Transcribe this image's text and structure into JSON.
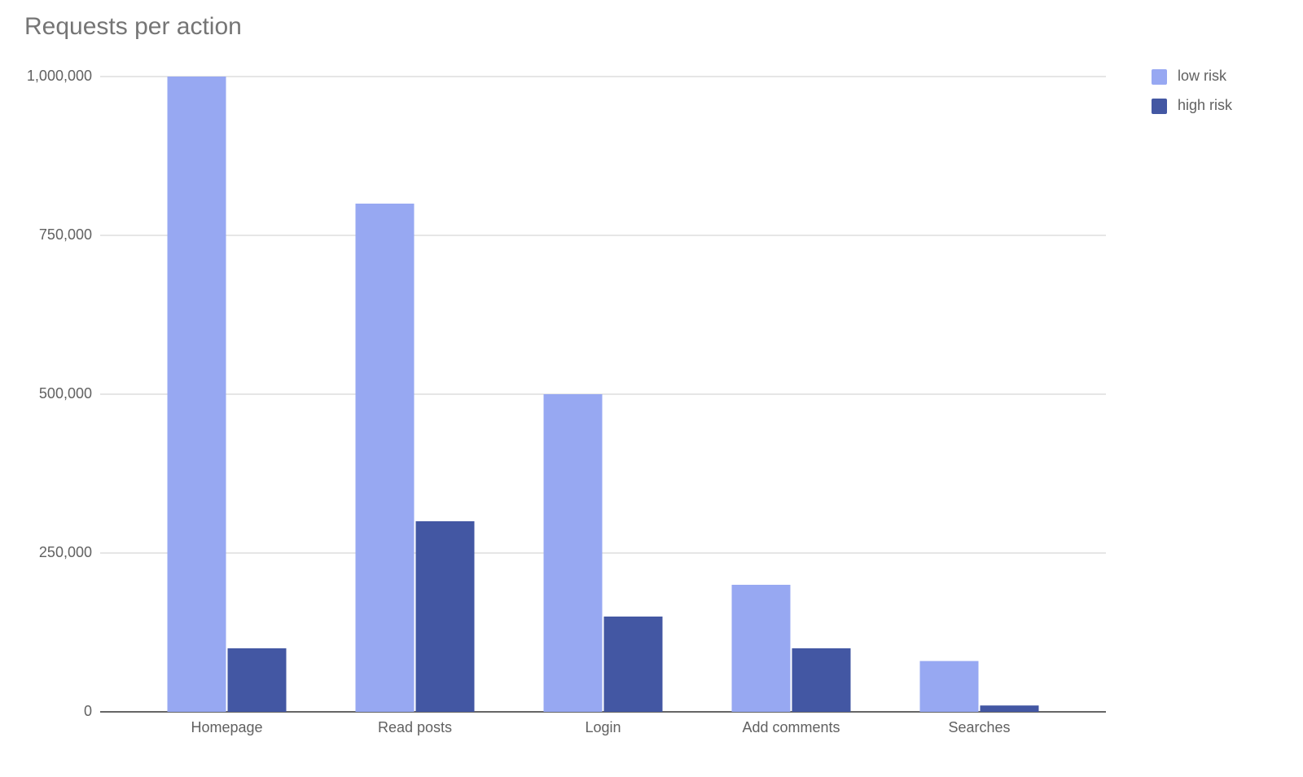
{
  "chart_data": {
    "type": "bar",
    "title": "Requests per action",
    "categories": [
      "Homepage",
      "Read posts",
      "Login",
      "Add comments",
      "Searches"
    ],
    "series": [
      {
        "name": "low risk",
        "color": "#97a8f2",
        "values": [
          1000000,
          800000,
          500000,
          200000,
          80000
        ]
      },
      {
        "name": "high risk",
        "color": "#4357a3",
        "values": [
          100000,
          300000,
          150000,
          100000,
          10000
        ]
      }
    ],
    "ylim": [
      0,
      1000000
    ],
    "yticks": [
      0,
      {
        "value": 250000,
        "label": "250,000"
      },
      {
        "value": 500000,
        "label": "500,000"
      },
      {
        "value": 750000,
        "label": "750,000"
      },
      {
        "value": 1000000,
        "label": "1,000,000"
      }
    ],
    "grid": true,
    "legend": "right"
  }
}
